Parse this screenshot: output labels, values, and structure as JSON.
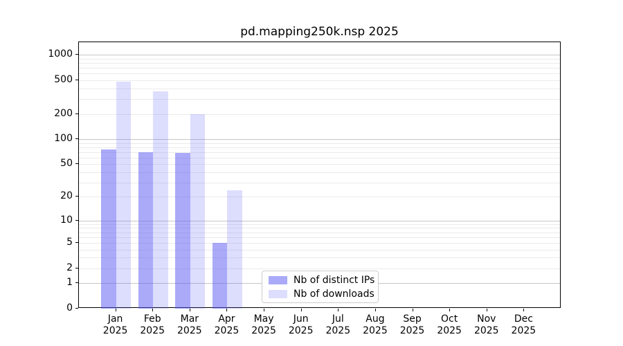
{
  "title": "pd.mapping250k.nsp 2025",
  "chart_data": {
    "type": "bar",
    "title": "pd.mapping250k.nsp 2025",
    "xlabel": "",
    "ylabel": "",
    "yscale": "log1p",
    "ylim": [
      0,
      1414
    ],
    "grid": "both",
    "legend_position": "lower-center-inside",
    "categories": [
      "Jan",
      "Feb",
      "Mar",
      "Apr",
      "May",
      "Jun",
      "Jul",
      "Aug",
      "Sep",
      "Oct",
      "Nov",
      "Dec"
    ],
    "category_year": "2025",
    "y_ticks": [
      0,
      1,
      2,
      5,
      10,
      20,
      50,
      100,
      200,
      500,
      1000
    ],
    "grid_major_values": [
      1,
      10,
      100,
      1000
    ],
    "grid_minor_values": [
      2,
      3,
      4,
      5,
      6,
      7,
      8,
      9,
      20,
      30,
      40,
      50,
      60,
      70,
      80,
      90,
      200,
      300,
      400,
      500,
      600,
      700,
      800,
      900
    ],
    "series": [
      {
        "name": "Nb of distinct IPs",
        "color": "rgba(85, 85, 243, 0.5)",
        "values": [
          75,
          70,
          69,
          5,
          0,
          0,
          0,
          0,
          0,
          0,
          0,
          0
        ]
      },
      {
        "name": "Nb of downloads",
        "color": "rgba(85, 85, 243, 0.2)",
        "values": [
          480,
          370,
          200,
          24,
          0,
          0,
          0,
          0,
          0,
          0,
          0,
          0
        ]
      }
    ]
  },
  "colors": {
    "grid_major": "#c6c6c6",
    "grid_minor": "#ebebeb",
    "axis": "#000000",
    "legend_border": "#cccccc"
  }
}
